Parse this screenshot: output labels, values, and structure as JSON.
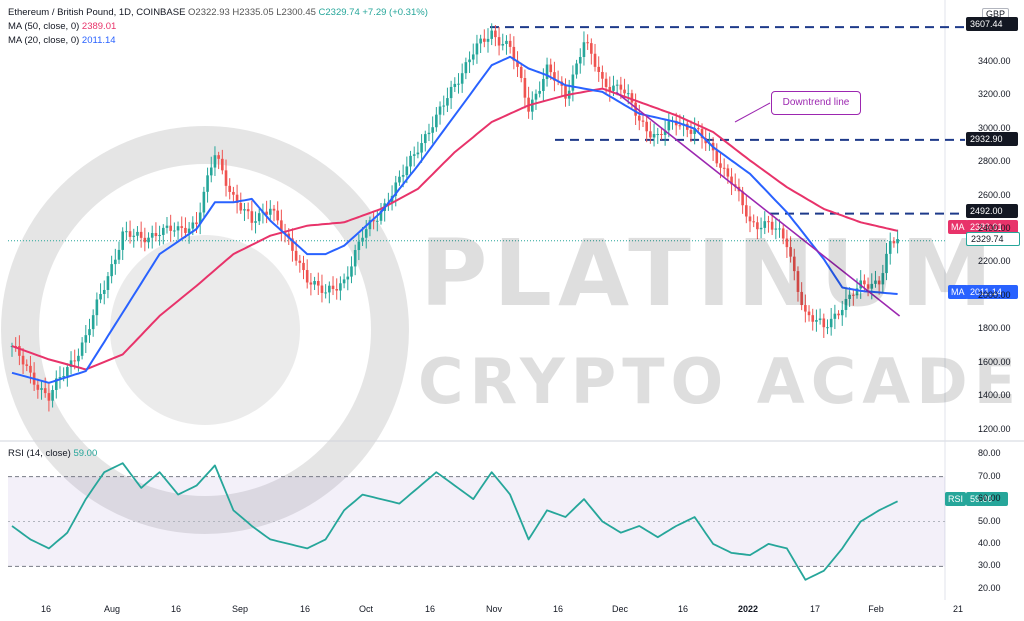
{
  "header": {
    "symbol": "Ethereum / British Pound, 1D, COINBASE",
    "ohlc": "O2322.93  H2335.05  L2300.45",
    "change": "C2329.74  +7.29 (+0.31%)",
    "ma50_label": "MA (50, close, 0)",
    "ma50_value": "2389.01",
    "ma20_label": "MA (20, close, 0)",
    "ma20_value": "2011.14",
    "rsi_label": "RSI (14, close)",
    "rsi_value": "59.00"
  },
  "currency": "GBP",
  "annotation": "Downtrend line",
  "watermark": {
    "line1": "PLATINUM",
    "line2": "CRYPTO ACADEMY"
  },
  "tags": {
    "resistance_top": "3607.44",
    "level_2932": "2932.90",
    "level_2492": "2492.00",
    "ma50": "2389.01",
    "price": "2329.74",
    "ma20": "2011.14",
    "ma_label": "MA",
    "rsi_label": "RSI",
    "rsi": "59.00"
  },
  "colors": {
    "up": "#26a69a",
    "down": "#ef5350",
    "ma50": "#e8336a",
    "ma20": "#2962ff",
    "trendline": "#9c27b0",
    "rsi": "#26a69a"
  },
  "chart_data": {
    "type": "candlestick",
    "price_ticks": [
      "3400.00",
      "3200.00",
      "3000.00",
      "2800.00",
      "2600.00",
      "2400.00",
      "2200.00",
      "2000.00",
      "1800.00",
      "1600.00",
      "1400.00",
      "1200.00"
    ],
    "price_range": [
      1150,
      3680
    ],
    "x_ticks": [
      "16",
      "Aug",
      "16",
      "Sep",
      "16",
      "Oct",
      "16",
      "Nov",
      "16",
      "Dec",
      "16",
      "2022",
      "17",
      "Feb",
      "21"
    ],
    "horizontal_levels": [
      3607.44,
      2932.9,
      2492.0
    ],
    "close_anchors": [
      [
        0,
        1700
      ],
      [
        5,
        1520
      ],
      [
        10,
        1400
      ],
      [
        15,
        1560
      ],
      [
        20,
        1760
      ],
      [
        25,
        2050
      ],
      [
        30,
        2380
      ],
      [
        35,
        2330
      ],
      [
        40,
        2400
      ],
      [
        45,
        2380
      ],
      [
        50,
        2450
      ],
      [
        55,
        2840
      ],
      [
        60,
        2600
      ],
      [
        65,
        2430
      ],
      [
        70,
        2550
      ],
      [
        75,
        2300
      ],
      [
        80,
        2120
      ],
      [
        85,
        2000
      ],
      [
        90,
        2100
      ],
      [
        95,
        2350
      ],
      [
        100,
        2520
      ],
      [
        105,
        2680
      ],
      [
        110,
        2900
      ],
      [
        115,
        3050
      ],
      [
        120,
        3280
      ],
      [
        125,
        3450
      ],
      [
        130,
        3580
      ],
      [
        135,
        3480
      ],
      [
        140,
        3130
      ],
      [
        145,
        3350
      ],
      [
        150,
        3200
      ],
      [
        155,
        3520
      ],
      [
        160,
        3280
      ],
      [
        165,
        3250
      ],
      [
        170,
        3050
      ],
      [
        175,
        2950
      ],
      [
        180,
        3040
      ],
      [
        185,
        3000
      ],
      [
        190,
        2850
      ],
      [
        195,
        2700
      ],
      [
        200,
        2420
      ],
      [
        205,
        2450
      ],
      [
        210,
        2300
      ],
      [
        215,
        1900
      ],
      [
        220,
        1800
      ],
      [
        225,
        1950
      ],
      [
        230,
        2050
      ],
      [
        235,
        2100
      ],
      [
        238,
        2300
      ],
      [
        240,
        2329.74
      ]
    ],
    "ma50_anchors": [
      [
        0,
        1700
      ],
      [
        10,
        1620
      ],
      [
        20,
        1560
      ],
      [
        30,
        1650
      ],
      [
        40,
        1880
      ],
      [
        50,
        2060
      ],
      [
        60,
        2250
      ],
      [
        70,
        2360
      ],
      [
        80,
        2420
      ],
      [
        90,
        2440
      ],
      [
        100,
        2520
      ],
      [
        110,
        2640
      ],
      [
        120,
        2860
      ],
      [
        130,
        3040
      ],
      [
        140,
        3140
      ],
      [
        150,
        3200
      ],
      [
        160,
        3240
      ],
      [
        170,
        3160
      ],
      [
        180,
        3080
      ],
      [
        190,
        2980
      ],
      [
        200,
        2810
      ],
      [
        210,
        2650
      ],
      [
        220,
        2520
      ],
      [
        230,
        2440
      ],
      [
        240,
        2389.01
      ]
    ],
    "ma20_anchors": [
      [
        0,
        1540
      ],
      [
        10,
        1480
      ],
      [
        20,
        1550
      ],
      [
        30,
        1900
      ],
      [
        40,
        2250
      ],
      [
        50,
        2400
      ],
      [
        55,
        2560
      ],
      [
        60,
        2560
      ],
      [
        65,
        2580
      ],
      [
        70,
        2450
      ],
      [
        75,
        2350
      ],
      [
        80,
        2250
      ],
      [
        85,
        2250
      ],
      [
        90,
        2300
      ],
      [
        100,
        2500
      ],
      [
        110,
        2780
      ],
      [
        120,
        3080
      ],
      [
        130,
        3380
      ],
      [
        135,
        3430
      ],
      [
        140,
        3360
      ],
      [
        145,
        3320
      ],
      [
        150,
        3260
      ],
      [
        160,
        3220
      ],
      [
        170,
        3090
      ],
      [
        180,
        3040
      ],
      [
        185,
        3000
      ],
      [
        190,
        2890
      ],
      [
        200,
        2730
      ],
      [
        210,
        2500
      ],
      [
        220,
        2220
      ],
      [
        225,
        2050
      ],
      [
        230,
        2030
      ],
      [
        240,
        2011.14
      ]
    ],
    "trendline": [
      [
        180,
        3170
      ],
      [
        240,
        1880
      ]
    ],
    "rsi_ticks": [
      "80.00",
      "70.00",
      "60.00",
      "50.00",
      "40.00",
      "30.00",
      "20.00"
    ],
    "rsi_range": [
      15,
      85
    ],
    "rsi_band": [
      30,
      70
    ],
    "rsi_anchors": [
      [
        0,
        48
      ],
      [
        5,
        42
      ],
      [
        10,
        38
      ],
      [
        15,
        45
      ],
      [
        20,
        60
      ],
      [
        25,
        72
      ],
      [
        30,
        76
      ],
      [
        35,
        65
      ],
      [
        40,
        72
      ],
      [
        45,
        62
      ],
      [
        50,
        66
      ],
      [
        55,
        75
      ],
      [
        60,
        55
      ],
      [
        65,
        48
      ],
      [
        70,
        42
      ],
      [
        75,
        40
      ],
      [
        80,
        38
      ],
      [
        85,
        42
      ],
      [
        90,
        55
      ],
      [
        95,
        62
      ],
      [
        100,
        60
      ],
      [
        105,
        58
      ],
      [
        110,
        65
      ],
      [
        115,
        72
      ],
      [
        120,
        66
      ],
      [
        125,
        60
      ],
      [
        130,
        72
      ],
      [
        135,
        62
      ],
      [
        140,
        42
      ],
      [
        145,
        55
      ],
      [
        150,
        52
      ],
      [
        155,
        60
      ],
      [
        160,
        50
      ],
      [
        165,
        45
      ],
      [
        170,
        48
      ],
      [
        175,
        43
      ],
      [
        180,
        48
      ],
      [
        185,
        52
      ],
      [
        190,
        40
      ],
      [
        195,
        36
      ],
      [
        200,
        35
      ],
      [
        205,
        40
      ],
      [
        210,
        38
      ],
      [
        215,
        24
      ],
      [
        220,
        28
      ],
      [
        225,
        38
      ],
      [
        230,
        50
      ],
      [
        235,
        55
      ],
      [
        240,
        59
      ]
    ],
    "candles_count": 241
  }
}
